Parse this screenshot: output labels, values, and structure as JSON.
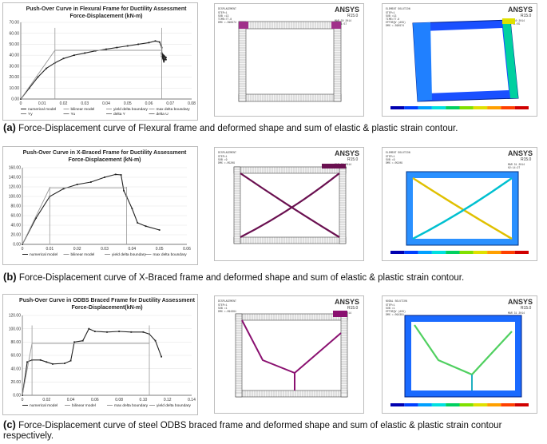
{
  "captions": {
    "a": {
      "label": "(a)",
      "text": "Force-Displacement curve of Flexural frame and deformed shape and sum of elastic & plastic strain contour."
    },
    "b": {
      "label": "(b)",
      "text": "Force-Displacement curve of X-Braced frame and deformed shape and sum of elastic & plastic strain contour."
    },
    "c": {
      "label": "(c)",
      "text": "Force-Displacement curve of steel ODBS braced frame and deformed shape and sum of elastic & plastic strain contour respectively."
    }
  },
  "ansys": {
    "logo": "ANSYS",
    "release": "R15.0"
  },
  "colors": {
    "numerical": "#222222",
    "bilinear": "#999999",
    "yield": "#8b1a1a",
    "max": "#1f4e9c"
  },
  "fea": {
    "a": {
      "left": {
        "type": "DISPLACEMENT",
        "lines": [
          "STEP=1",
          "SUB =13",
          "TIME=77.8",
          "DMX =.396974"
        ],
        "date": "MAR 30 2014",
        "time": "15:41:57"
      },
      "right": {
        "type": "ELEMENT SOLUTION",
        "lines": [
          "STEP=1",
          "SUB =13",
          "TIME=77.8",
          "EPTOEQV (AVG)",
          "DMX =.396974"
        ],
        "date": "MAR 30 2014",
        "time": "17:01:55"
      }
    },
    "b": {
      "left": {
        "type": "DISPLACEMENT",
        "lines": [
          "STEP=1",
          "SUB =9",
          "DMX =.05209"
        ],
        "date": "MAR 29 2014",
        "time": "18:18:48"
      },
      "right": {
        "type": "ELEMENT SOLUTION",
        "lines": [
          "STEP=1",
          "SUB =9",
          "DMX =.05209"
        ],
        "date": "MAR 31 2014",
        "time": "02:14:27"
      }
    },
    "c": {
      "left": {
        "type": "DISPLACEMENT",
        "lines": [
          "STEP=1",
          "SUB =1",
          "DMX =.094391"
        ],
        "date": "MAR 30 2014",
        "time": "17:57:18"
      },
      "right": {
        "type": "NODAL SOLUTION",
        "lines": [
          "STEP=1",
          "SUB =1",
          "EPTOEQV (AVG)",
          "DMX =.094391"
        ],
        "date": "MAR 31 2014",
        "time": "17:45:24"
      }
    }
  },
  "chart_data": [
    {
      "type": "line",
      "title": "Push-Over Curve in Flexural Frame for Ductility Assessment",
      "subtitle": "Force-Displacement (kN-m)",
      "xlim": [
        0,
        0.08
      ],
      "ylim": [
        0,
        70
      ],
      "x_ticks": [
        "0",
        "0.01",
        "0.02",
        "0.03",
        "0.04",
        "0.05",
        "0.06",
        "0.07",
        "0.08"
      ],
      "y_ticks": [
        "0.00",
        "10.00",
        "20.00",
        "30.00",
        "40.00",
        "50.00",
        "60.00",
        "70.00"
      ],
      "series": [
        {
          "name": "numerical model",
          "x": [
            0,
            0.004,
            0.008,
            0.012,
            0.016,
            0.02,
            0.025,
            0.03,
            0.035,
            0.04,
            0.045,
            0.05,
            0.055,
            0.06,
            0.063,
            0.065,
            0.066,
            0.066,
            0.067,
            0.066,
            0.067,
            0.066,
            0.067,
            0.068,
            0.066,
            0.068
          ],
          "y": [
            0,
            10,
            20,
            28,
            33,
            37,
            40,
            42,
            44,
            45.5,
            47,
            48.5,
            50,
            51.5,
            53,
            52,
            47,
            42,
            37,
            41,
            36,
            39,
            34,
            38,
            42,
            36
          ]
        },
        {
          "name": "bilinear model",
          "x": [
            0,
            0.016,
            0.066
          ],
          "y": [
            0,
            44.5,
            44.5
          ]
        },
        {
          "name": "yield delta boundary",
          "x": [
            0.016,
            0.016
          ],
          "y": [
            0,
            65
          ]
        },
        {
          "name": "max delta boundary",
          "x": [
            0.066,
            0.066
          ],
          "y": [
            0,
            65
          ]
        }
      ],
      "legend": [
        "numerical model",
        "bilinear model",
        "yield delta boundary",
        "max delta boundary",
        "Yy",
        "Yu",
        "delta Y",
        "delta U"
      ]
    },
    {
      "type": "line",
      "title": "Push-Over Curve in X-Braced Frame for Ductility Assessment",
      "subtitle": "Force-Displacement (kN-m)",
      "xlim": [
        0,
        0.06
      ],
      "ylim": [
        0,
        160
      ],
      "x_ticks": [
        "0",
        "0.01",
        "0.02",
        "0.03",
        "0.04",
        "0.05",
        "0.06"
      ],
      "y_ticks": [
        "0.00",
        "20.00",
        "40.00",
        "60.00",
        "80.00",
        "100.00",
        "120.00",
        "140.00",
        "160.00"
      ],
      "series": [
        {
          "name": "numerical model",
          "x": [
            0,
            0.005,
            0.01,
            0.015,
            0.02,
            0.025,
            0.03,
            0.034,
            0.036,
            0.037,
            0.038,
            0.04,
            0.042,
            0.045,
            0.05
          ],
          "y": [
            0,
            55,
            100,
            116,
            125,
            130,
            140,
            146,
            145,
            112,
            100,
            75,
            45,
            38,
            30
          ]
        },
        {
          "name": "bilinear model",
          "x": [
            0,
            0.01,
            0.038
          ],
          "y": [
            0,
            118,
            118
          ]
        },
        {
          "name": "yield delta boundary",
          "x": [
            0.01,
            0.01
          ],
          "y": [
            0,
            120
          ]
        },
        {
          "name": "max delta boundary",
          "x": [
            0.038,
            0.038
          ],
          "y": [
            0,
            120
          ]
        }
      ],
      "legend": [
        "numerical model",
        "bilinear model",
        "yield delta boundary",
        "max delta boundary"
      ]
    },
    {
      "type": "line",
      "title": "Push-Over Curve in ODBS Braced Frame for Ductility Assessment",
      "subtitle": "Force-Displacement(kN-m)",
      "xlim": [
        0,
        0.14
      ],
      "ylim": [
        0,
        120
      ],
      "x_ticks": [
        "0",
        "0.02",
        "0.04",
        "0.06",
        "0.08",
        "0.10",
        "0.12",
        "0.14"
      ],
      "y_ticks": [
        "0.00",
        "20.00",
        "40.00",
        "60.00",
        "80.00",
        "100.00",
        "120.00"
      ],
      "series": [
        {
          "name": "numerical model",
          "x": [
            0,
            0.004,
            0.008,
            0.015,
            0.02,
            0.025,
            0.035,
            0.04,
            0.043,
            0.05,
            0.055,
            0.06,
            0.07,
            0.08,
            0.09,
            0.1,
            0.105,
            0.11,
            0.115
          ],
          "y": [
            0,
            50,
            53,
            53,
            50,
            47,
            48,
            52,
            80,
            82,
            100,
            96,
            95,
            96,
            95,
            95,
            92,
            82,
            58
          ]
        },
        {
          "name": "bilinear model",
          "x": [
            0,
            0.008,
            0.105
          ],
          "y": [
            0,
            78,
            78
          ]
        },
        {
          "name": "max delta boundary",
          "x": [
            0.105,
            0.105
          ],
          "y": [
            0,
            105
          ]
        },
        {
          "name": "yield delta boundary",
          "x": [
            0.008,
            0.008
          ],
          "y": [
            0,
            105
          ]
        }
      ],
      "legend": [
        "numerical model",
        "bilinear model",
        "max delta boundary",
        "yield delta boundary"
      ]
    }
  ]
}
